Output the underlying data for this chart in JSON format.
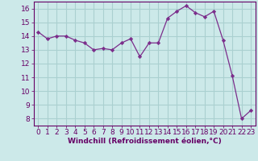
{
  "x": [
    0,
    1,
    2,
    3,
    4,
    5,
    6,
    7,
    8,
    9,
    10,
    11,
    12,
    13,
    14,
    15,
    16,
    17,
    18,
    19,
    20,
    21,
    22,
    23
  ],
  "y": [
    14.3,
    13.8,
    14.0,
    14.0,
    13.7,
    13.5,
    13.0,
    13.1,
    13.0,
    13.5,
    13.8,
    12.5,
    13.5,
    13.5,
    15.3,
    15.8,
    16.2,
    15.7,
    15.4,
    15.8,
    13.7,
    11.1,
    8.0,
    8.6
  ],
  "line_color": "#7b2d8b",
  "marker": "D",
  "marker_size": 2.2,
  "bg_color": "#cce9e9",
  "grid_color": "#aad0d0",
  "xlabel": "Windchill (Refroidissement éolien,°C)",
  "xlabel_fontsize": 6.5,
  "tick_fontsize": 6.5,
  "xlim": [
    -0.5,
    23.5
  ],
  "ylim": [
    7.5,
    16.5
  ],
  "yticks": [
    8,
    9,
    10,
    11,
    12,
    13,
    14,
    15,
    16
  ],
  "xticks": [
    0,
    1,
    2,
    3,
    4,
    5,
    6,
    7,
    8,
    9,
    10,
    11,
    12,
    13,
    14,
    15,
    16,
    17,
    18,
    19,
    20,
    21,
    22,
    23
  ],
  "text_color": "#660066"
}
